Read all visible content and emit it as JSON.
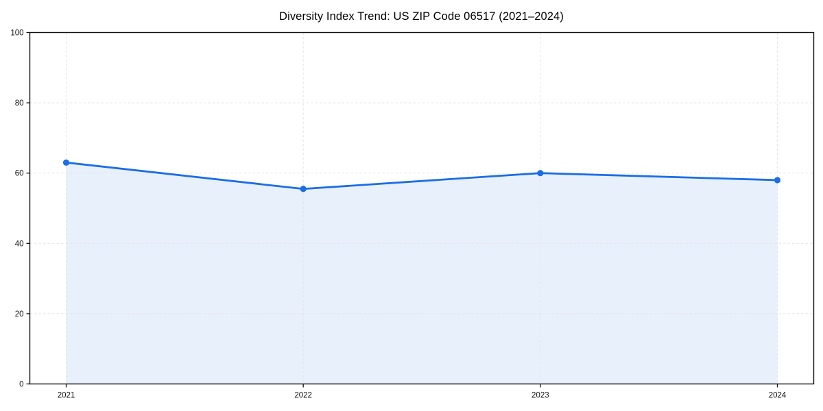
{
  "chart_data": {
    "type": "line",
    "title": "Diversity Index Trend: US ZIP Code 06517 (2021–2024)",
    "xlabel": "",
    "ylabel": "",
    "x_categories": [
      "2021",
      "2022",
      "2023",
      "2024"
    ],
    "series": [
      {
        "name": "Diversity Index",
        "values": [
          63,
          55.5,
          60,
          58
        ]
      }
    ],
    "ylim": [
      0,
      100
    ],
    "yticks": [
      0,
      20,
      40,
      60,
      80,
      100
    ],
    "grid": true,
    "grid_style": "dashed",
    "legend": "none",
    "area_fill": true,
    "markers": true,
    "colors": {
      "line": "#1a6ee6",
      "marker": "#1a6ee6",
      "area_fill": "rgba(26,110,230,0.10)",
      "grid": "#e4e4e4",
      "spine": "#111111",
      "tick_label": "#111111",
      "title": "#000000",
      "background": "#ffffff"
    }
  }
}
